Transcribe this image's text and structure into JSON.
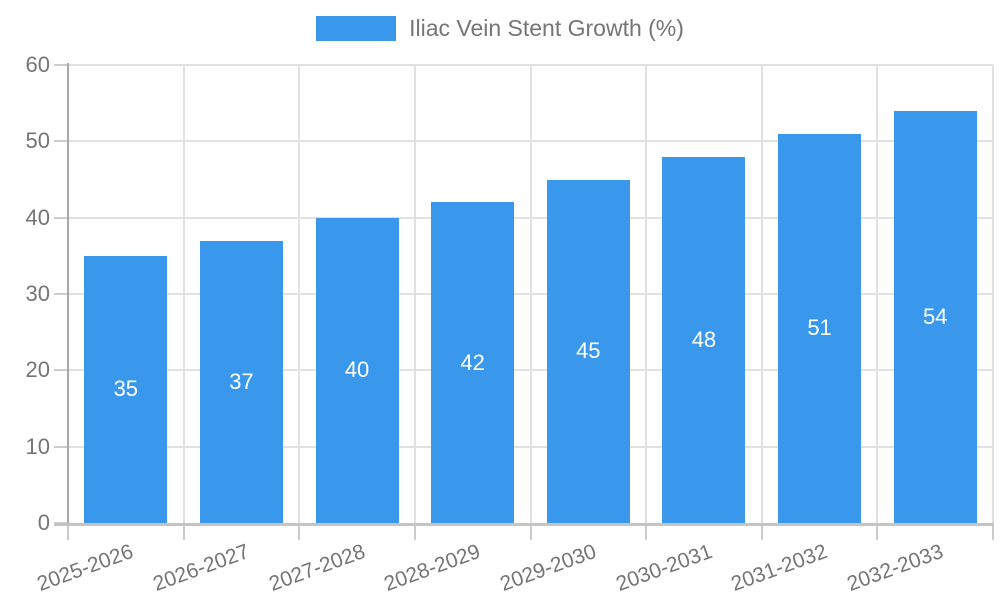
{
  "chart_data": {
    "type": "bar",
    "title": "Iliac Vein Stent Growth (%)",
    "legend_position": "top",
    "categories": [
      "2025-2026",
      "2026-2027",
      "2027-2028",
      "2028-2029",
      "2029-2030",
      "2030-2031",
      "2031-2032",
      "2032-2033"
    ],
    "series": [
      {
        "name": "Iliac Vein Stent Growth (%)",
        "values": [
          35,
          37,
          40,
          42,
          45,
          48,
          51,
          54
        ]
      }
    ],
    "value_labels_shown": true,
    "xlabel": "",
    "ylabel": "",
    "ylim": [
      0,
      60
    ],
    "yticks": [
      0,
      10,
      20,
      30,
      40,
      50,
      60
    ],
    "x_label_rotation_deg": -20,
    "grid": true,
    "colors": {
      "bar": "#3a98ec",
      "bar_value_label": "#ffffff",
      "tick_text": "#757575",
      "grid_line": "#e1e1e1",
      "tick_mark": "#cccccc",
      "y_axis_line": "#a8a8a8",
      "x_axis_line": "#c4c4c4"
    }
  }
}
